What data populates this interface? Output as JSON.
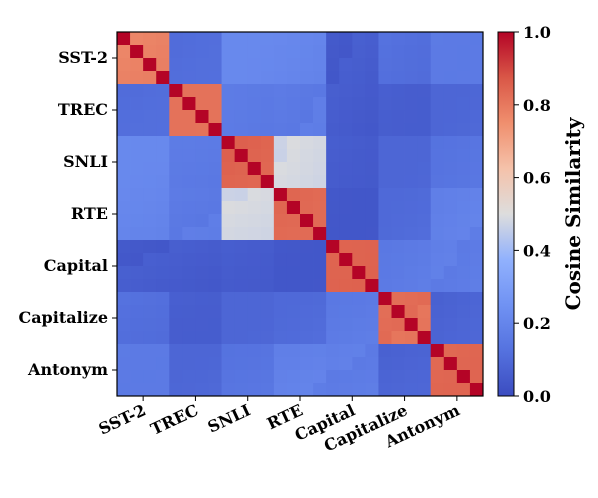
{
  "chart_data": {
    "type": "heatmap",
    "title": "",
    "xlabel": "",
    "ylabel": "",
    "row_labels": [
      "SST-2",
      "TREC",
      "SNLI",
      "RTE",
      "Capital",
      "Capitalize",
      "Antonym"
    ],
    "col_labels": [
      "SST-2",
      "TREC",
      "SNLI",
      "RTE",
      "Capital",
      "Capitalize",
      "Antonym"
    ],
    "items_per_group": 4,
    "colorscale": "coolwarm",
    "vmin": 0.0,
    "vmax": 1.0,
    "colorbar": {
      "label": "Cosine Similarity",
      "ticks": [
        0.0,
        0.2,
        0.4,
        0.6,
        0.8,
        1.0
      ],
      "tick_labels": [
        "0.0",
        "0.2",
        "0.4",
        "0.6",
        "0.8",
        "1.0"
      ]
    },
    "group_block_values": [
      [
        0.78,
        0.1,
        0.2,
        0.2,
        0.05,
        0.12,
        0.17
      ],
      [
        0.1,
        0.8,
        0.15,
        0.16,
        0.05,
        0.07,
        0.1
      ],
      [
        0.2,
        0.15,
        0.85,
        0.48,
        0.06,
        0.1,
        0.14
      ],
      [
        0.2,
        0.16,
        0.48,
        0.84,
        0.05,
        0.11,
        0.18
      ],
      [
        0.05,
        0.05,
        0.06,
        0.05,
        0.86,
        0.16,
        0.17
      ],
      [
        0.12,
        0.07,
        0.1,
        0.11,
        0.16,
        0.82,
        0.08
      ],
      [
        0.17,
        0.1,
        0.14,
        0.18,
        0.17,
        0.08,
        0.83
      ]
    ],
    "diagonal_value": 1.0
  }
}
